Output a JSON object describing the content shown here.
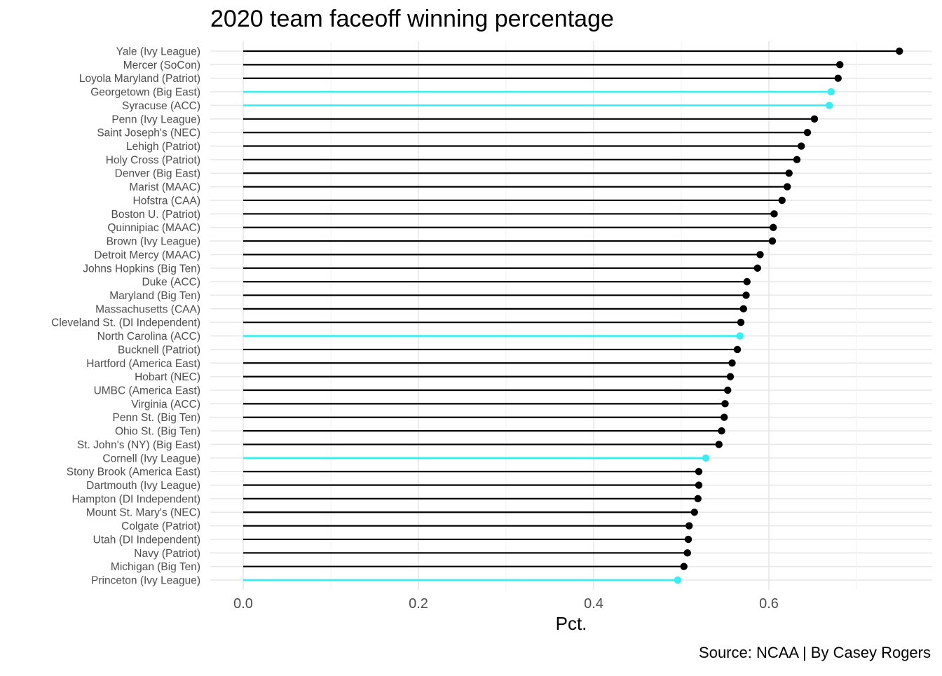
{
  "chart_data": {
    "type": "lollipop",
    "title": "2020 team faceoff winning percentage",
    "xlabel": "Pct.",
    "ylabel": "",
    "caption": "Source: NCAA | By Casey Rogers",
    "xlim": [
      0,
      0.76
    ],
    "x_ticks": [
      0.0,
      0.2,
      0.4,
      0.6
    ],
    "x_tick_labels": [
      "0.0",
      "0.2",
      "0.4",
      "0.6"
    ],
    "grid": true,
    "legend": "none",
    "colors": {
      "default": "#000000",
      "highlight": "#33f0f2",
      "grid_major": "#e8e8e8",
      "grid_minor": "#f2f2f2"
    },
    "categories": [
      "Yale (Ivy League)",
      "Mercer (SoCon)",
      "Loyola Maryland (Patriot)",
      "Georgetown (Big East)",
      "Syracuse (ACC)",
      "Penn (Ivy League)",
      "Saint Joseph's (NEC)",
      "Lehigh (Patriot)",
      "Holy Cross (Patriot)",
      "Denver (Big East)",
      "Marist (MAAC)",
      "Hofstra (CAA)",
      "Boston U. (Patriot)",
      "Quinnipiac (MAAC)",
      "Brown (Ivy League)",
      "Detroit Mercy (MAAC)",
      "Johns Hopkins (Big Ten)",
      "Duke (ACC)",
      "Maryland (Big Ten)",
      "Massachusetts (CAA)",
      "Cleveland St. (DI Independent)",
      "North Carolina (ACC)",
      "Bucknell (Patriot)",
      "Hartford (America East)",
      "Hobart (NEC)",
      "UMBC (America East)",
      "Virginia (ACC)",
      "Penn St. (Big Ten)",
      "Ohio St. (Big Ten)",
      "St. John's (NY) (Big East)",
      "Cornell (Ivy League)",
      "Stony Brook (America East)",
      "Dartmouth (Ivy League)",
      "Hampton (DI Independent)",
      "Mount St. Mary's (NEC)",
      "Colgate (Patriot)",
      "Utah (DI Independent)",
      "Navy (Patriot)",
      "Michigan (Big Ten)",
      "Princeton (Ivy League)"
    ],
    "values": [
      0.749,
      0.681,
      0.679,
      0.671,
      0.669,
      0.652,
      0.644,
      0.637,
      0.632,
      0.623,
      0.621,
      0.615,
      0.606,
      0.605,
      0.604,
      0.59,
      0.587,
      0.575,
      0.574,
      0.571,
      0.568,
      0.567,
      0.564,
      0.558,
      0.556,
      0.553,
      0.55,
      0.549,
      0.546,
      0.543,
      0.528,
      0.52,
      0.52,
      0.519,
      0.515,
      0.509,
      0.508,
      0.507,
      0.503,
      0.496
    ],
    "highlight": [
      false,
      false,
      false,
      true,
      true,
      false,
      false,
      false,
      false,
      false,
      false,
      false,
      false,
      false,
      false,
      false,
      false,
      false,
      false,
      false,
      false,
      true,
      false,
      false,
      false,
      false,
      false,
      false,
      false,
      false,
      true,
      false,
      false,
      false,
      false,
      false,
      false,
      false,
      false,
      true
    ]
  }
}
